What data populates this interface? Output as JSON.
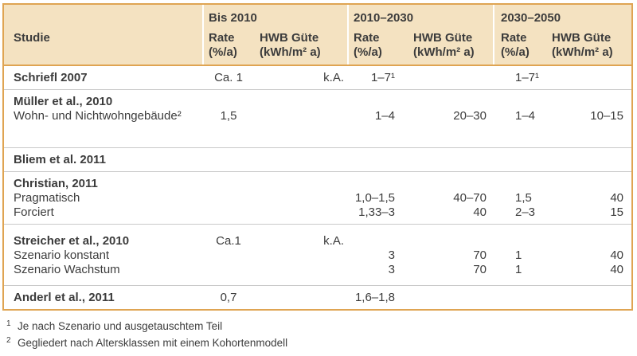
{
  "colors": {
    "header_bg": "#f4e2c1",
    "border": "#dfa452",
    "row_line": "#c9c9c9",
    "text": "#3c3c3c"
  },
  "header": {
    "studie": "Studie",
    "groups": [
      {
        "label": "Bis 2010",
        "rate": "Rate",
        "rate_unit": "(%/a)",
        "hwb": "HWB Güte",
        "hwb_unit": "(kWh/m² a)"
      },
      {
        "label": "2010–2030",
        "rate": "Rate",
        "rate_unit": "(%/a)",
        "hwb": "HWB Güte",
        "hwb_unit": "(kWh/m² a)"
      },
      {
        "label": "2030–2050",
        "rate": "Rate",
        "rate_unit": "(%/a)",
        "hwb": "HWB Güte",
        "hwb_unit": "(kWh/m² a)"
      }
    ]
  },
  "rows": [
    {
      "lines": [
        {
          "study": "Schriefl 2007",
          "bold": true,
          "c": [
            "Ca. 1",
            "k.A.",
            "1–7¹",
            "",
            "1–7¹",
            ""
          ]
        }
      ]
    },
    {
      "lines": [
        {
          "study": "Müller et al., 2010",
          "bold": true,
          "c": [
            "",
            "",
            "",
            "",
            "",
            ""
          ]
        },
        {
          "study": "Wohn- und Nichtwohngebäude²",
          "bold": false,
          "c": [
            "1,5",
            "",
            "1–4",
            "20–30",
            "1–4",
            "10–15"
          ]
        }
      ]
    },
    {
      "lines": [
        {
          "study": "Bliem et al. 2011",
          "bold": true,
          "c": [
            "",
            "",
            "",
            "",
            "",
            ""
          ]
        }
      ]
    },
    {
      "lines": [
        {
          "study": "Christian, 2011",
          "bold": true,
          "c": [
            "",
            "",
            "",
            "",
            "",
            ""
          ]
        },
        {
          "study": "Pragmatisch",
          "bold": false,
          "c": [
            "",
            "",
            "1,0–1,5",
            "40–70",
            "1,5",
            "40"
          ]
        },
        {
          "study": "Forciert",
          "bold": false,
          "c": [
            "",
            "",
            "1,33–3",
            "40",
            "2–3",
            "15"
          ]
        }
      ]
    },
    {
      "lines": [
        {
          "study": "Streicher et al., 2010",
          "bold": true,
          "c": [
            "Ca.1",
            "k.A.",
            "",
            "",
            "",
            ""
          ]
        },
        {
          "study": "Szenario konstant",
          "bold": false,
          "c": [
            "",
            "",
            "3",
            "70",
            "1",
            "40"
          ]
        },
        {
          "study": "Szenario Wachstum",
          "bold": false,
          "c": [
            "",
            "",
            "3",
            "70",
            "1",
            "40"
          ]
        }
      ]
    },
    {
      "lines": [
        {
          "study": "Anderl et al., 2011",
          "bold": true,
          "c": [
            "0,7",
            "",
            "1,6–1,8",
            "",
            "",
            ""
          ]
        }
      ]
    }
  ],
  "footnotes": [
    {
      "marker": "1",
      "text": "Je nach Szenario und ausgetauschtem Teil"
    },
    {
      "marker": "2",
      "text": "Gegliedert nach Altersklassen mit einem Kohortenmodell"
    }
  ]
}
